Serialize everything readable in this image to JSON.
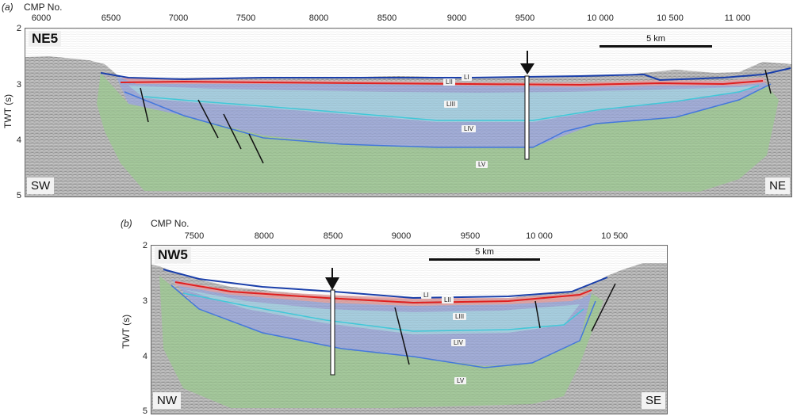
{
  "panels": [
    {
      "letter": "(a)",
      "cmp_label": "CMP No.",
      "cmp_ticks": [
        "6000",
        "6500",
        "7000",
        "7500",
        "8000",
        "8500",
        "9000",
        "9500",
        "10 000",
        "10 500",
        "11 000"
      ],
      "y_label": "TWT (s)",
      "y_ticks": [
        "2",
        "3",
        "4",
        "5"
      ],
      "profile_name": "NE5",
      "scale_bar": "5 km",
      "left_corner": "SW",
      "right_corner": "NE",
      "units": [
        "LI",
        "LII",
        "LIII",
        "LIV",
        "LV"
      ]
    },
    {
      "letter": "(b)",
      "cmp_label": "CMP No.",
      "cmp_ticks": [
        "7500",
        "8000",
        "8500",
        "9000",
        "9500",
        "10 000",
        "10 500"
      ],
      "y_label": "TWT (s)",
      "y_ticks": [
        "2",
        "3",
        "4",
        "5"
      ],
      "profile_name": "NW5",
      "scale_bar": "5 km",
      "left_corner": "NW",
      "right_corner": "SE",
      "units": [
        "LI",
        "LII",
        "LIII",
        "LIV",
        "LV"
      ]
    }
  ],
  "colors": {
    "LI_LII_fill": "#e8a0a0",
    "LIII_fill": "#a8d8e0",
    "LIV_fill": "#9aa8e0",
    "LV_fill": "#9ccc90",
    "top_horizon": "#1a3faa",
    "red_horizon": "#e02020",
    "cyan_horizon": "#40c8d8",
    "base_horizon": "#4477dd"
  }
}
